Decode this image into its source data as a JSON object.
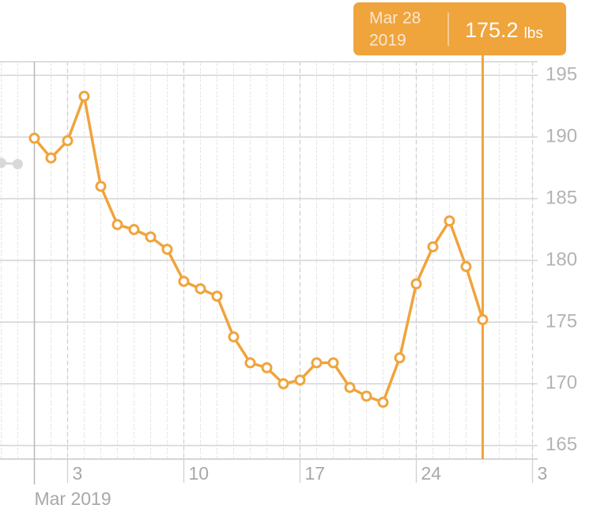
{
  "chart_data": {
    "type": "line",
    "x": [
      1,
      2,
      3,
      4,
      5,
      6,
      7,
      8,
      9,
      10,
      11,
      12,
      13,
      14,
      15,
      16,
      17,
      18,
      19,
      20,
      21,
      22,
      23,
      24,
      25,
      26,
      27,
      28
    ],
    "series": [
      {
        "color": "#f0a43c",
        "values": [
          189.9,
          188.3,
          189.7,
          193.3,
          186.0,
          182.9,
          182.5,
          181.9,
          180.9,
          178.3,
          177.7,
          177.1,
          173.8,
          171.7,
          171.3,
          170.0,
          170.3,
          171.7,
          171.7,
          169.7,
          169.0,
          168.5,
          172.1,
          178.1,
          181.1,
          183.2,
          179.5,
          175.2
        ]
      }
    ],
    "previous": {
      "color": "#d9d9d9",
      "x": [
        -1,
        0
      ],
      "values": [
        187.9,
        187.8
      ]
    },
    "xlim": [
      -1.07,
      31.31
    ],
    "ylim": [
      163.9,
      196.1
    ],
    "yticks": [
      165,
      170,
      175,
      180,
      185,
      190,
      195
    ],
    "xticks": [
      3,
      10,
      17,
      24,
      {
        "value": 31,
        "label": "3"
      }
    ],
    "month_ticks": [
      {
        "value": 1,
        "label": "Mar 2019"
      }
    ],
    "grid": true,
    "tooltip": {
      "date": "Mar 28",
      "year": "2019",
      "unit": "lbs",
      "point": 27
    }
  }
}
